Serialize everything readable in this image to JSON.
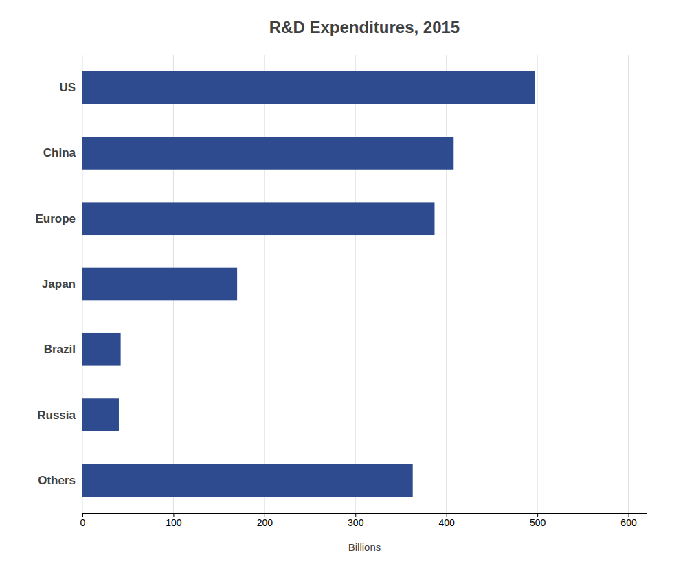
{
  "chart_data": {
    "type": "bar",
    "orientation": "horizontal",
    "title": "R&D Expenditures, 2015",
    "categories": [
      "US",
      "China",
      "Europe",
      "Japan",
      "Brazil",
      "Russia",
      "Others"
    ],
    "values": [
      497,
      408,
      387,
      170,
      42,
      40,
      363
    ],
    "color": "#2E4B8F",
    "xlabel": "Billions",
    "xlim": [
      0,
      620
    ],
    "xticks": [
      0,
      100,
      200,
      300,
      400,
      500,
      600
    ],
    "grid": true
  }
}
